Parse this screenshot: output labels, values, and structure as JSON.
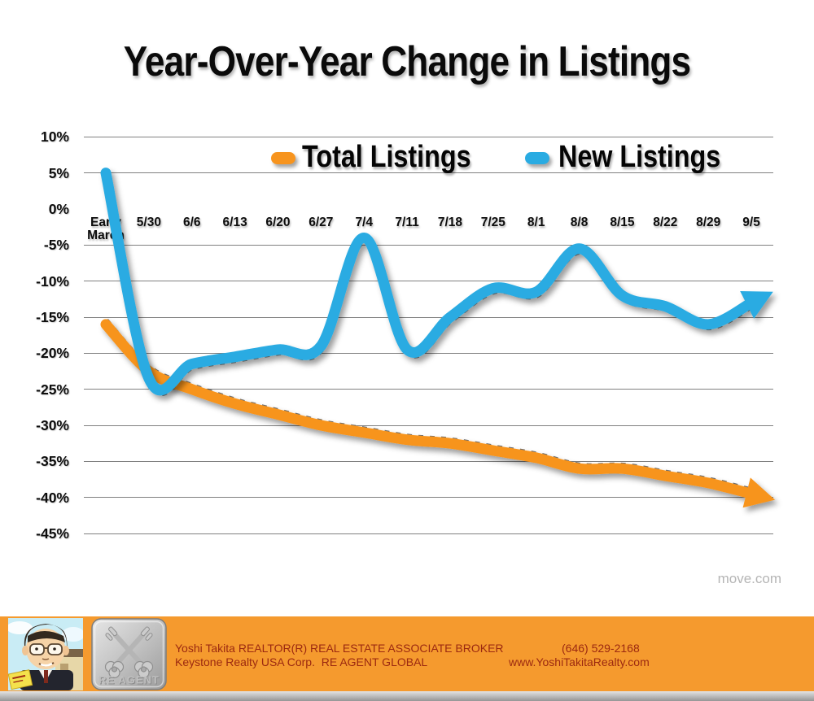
{
  "title": "Year-Over-Year Change in Listings",
  "watermark": "move.com",
  "chart_data": {
    "type": "line",
    "title": "Year-Over-Year Change in Listings",
    "categories": [
      "Early March",
      "5/30",
      "6/6",
      "6/13",
      "6/20",
      "6/27",
      "7/4",
      "7/11",
      "7/18",
      "7/25",
      "8/1",
      "8/8",
      "8/15",
      "8/22",
      "8/29",
      "9/5"
    ],
    "series": [
      {
        "name": "Total Listings",
        "color": "#F7941E",
        "arrow": "down-right",
        "values": [
          -16,
          -22.5,
          -25,
          -27,
          -28.5,
          -30,
          -31,
          -32,
          -32.5,
          -33.5,
          -34.5,
          -36,
          -36,
          -37,
          -38,
          -39.5
        ]
      },
      {
        "name": "New Listings",
        "color": "#29ABE2",
        "arrow": "up-right",
        "values": [
          5,
          -23.5,
          -21.5,
          -20.5,
          -19.5,
          -19,
          -4,
          -19.5,
          -15,
          -11,
          -11.5,
          -5.5,
          -12,
          -13.5,
          -16,
          -13
        ]
      }
    ],
    "yticks": [
      10,
      5,
      0,
      -5,
      -10,
      -15,
      -20,
      -25,
      -30,
      -35,
      -40,
      -45
    ],
    "ytick_labels": [
      "10%",
      "5%",
      "0%",
      "-5%",
      "-10%",
      "-15%",
      "-20%",
      "-25%",
      "-30%",
      "-35%",
      "-40%",
      "-45%"
    ],
    "ylim": [
      -45,
      10
    ],
    "grid": true,
    "legend_position": "top-center",
    "annotations": [
      "move.com"
    ]
  },
  "footer": {
    "agent_line1": "Yoshi Takita REALTOR(R) REAL ESTATE ASSOCIATE BROKER",
    "agent_line2": "Keystone Realty USA Corp.  RE AGENT GLOBAL",
    "phone": "(646) 529-2168",
    "website": "www.YoshiTakitaRealty.com",
    "badge_label": "RE AGENT",
    "bar_color": "#F59A2E",
    "text_color": "#9C2910"
  }
}
